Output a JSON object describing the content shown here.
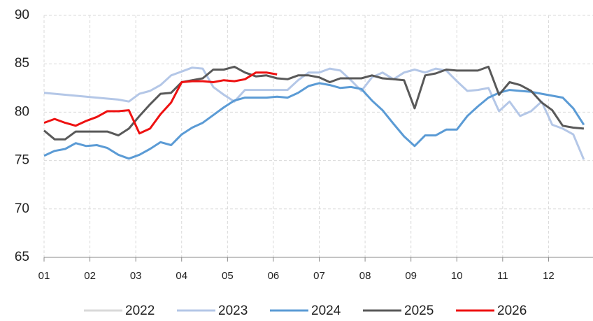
{
  "chart_data": {
    "type": "line",
    "x": [
      1,
      1.23,
      1.46,
      1.69,
      1.92,
      2.15,
      2.38,
      2.62,
      2.85,
      3.08,
      3.31,
      3.54,
      3.77,
      4.0,
      4.23,
      4.46,
      4.69,
      4.92,
      5.15,
      5.38,
      5.62,
      5.85,
      6.08,
      6.31,
      6.54,
      6.77,
      7.0,
      7.23,
      7.46,
      7.69,
      7.92,
      8.15,
      8.38,
      8.62,
      8.85,
      9.08,
      9.31,
      9.54,
      9.77,
      10.0,
      10.23,
      10.46,
      10.69,
      10.92,
      11.15,
      11.38,
      11.62,
      11.85,
      12.08,
      12.31,
      12.54,
      12.77
    ],
    "xlim": [
      1,
      13
    ],
    "xticks": [
      {
        "value": 1,
        "label": "01"
      },
      {
        "value": 2,
        "label": "02"
      },
      {
        "value": 3,
        "label": "03"
      },
      {
        "value": 4,
        "label": "04"
      },
      {
        "value": 5,
        "label": "05"
      },
      {
        "value": 6,
        "label": "06"
      },
      {
        "value": 7,
        "label": "07"
      },
      {
        "value": 8,
        "label": "08"
      },
      {
        "value": 9,
        "label": "09"
      },
      {
        "value": 10,
        "label": "10"
      },
      {
        "value": 11,
        "label": "11"
      },
      {
        "value": 12,
        "label": "12"
      }
    ],
    "ylim": [
      65,
      90
    ],
    "yticks": [
      65,
      70,
      75,
      80,
      85,
      90
    ],
    "grid": true,
    "legend": "bottom",
    "series": [
      {
        "name": "2022",
        "color": "#d9d9d9",
        "values": [
          null,
          null,
          null,
          null,
          null,
          null,
          null,
          null,
          null,
          null,
          null,
          null,
          null,
          null,
          null,
          null,
          null,
          null,
          null,
          null,
          null,
          null,
          null,
          null,
          null,
          null,
          null,
          null,
          null,
          null,
          null,
          null,
          null,
          null,
          null,
          null,
          null,
          null,
          null,
          null,
          null,
          null,
          null,
          null,
          null,
          null,
          null,
          null,
          null,
          null,
          null,
          null
        ]
      },
      {
        "name": "2023",
        "color": "#b4c7e7",
        "values": [
          82,
          81.9,
          81.8,
          81.7,
          81.6,
          81.5,
          81.4,
          81.3,
          81.1,
          81.9,
          82.2,
          82.8,
          83.8,
          84.2,
          84.6,
          84.5,
          82.6,
          81.8,
          81.1,
          82.3,
          82.3,
          82.3,
          82.3,
          82.3,
          83.3,
          84.1,
          84.1,
          84.5,
          84.3,
          83.3,
          82.2,
          83.6,
          84.1,
          83.4,
          84.1,
          84.4,
          84.1,
          84.5,
          84.3,
          83.2,
          82.2,
          82.3,
          82.5,
          80.1,
          81.1,
          79.6,
          80.1,
          81.1,
          78.7,
          78.3,
          77.7,
          75.1
        ]
      },
      {
        "name": "2024",
        "color": "#5b9bd5",
        "values": [
          75.5,
          76,
          76.2,
          76.8,
          76.5,
          76.6,
          76.3,
          75.6,
          75.2,
          75.6,
          76.2,
          76.9,
          76.6,
          77.7,
          78.4,
          78.9,
          79.7,
          80.5,
          81.2,
          81.5,
          81.5,
          81.5,
          81.6,
          81.5,
          82,
          82.7,
          83,
          82.8,
          82.5,
          82.6,
          82.4,
          81.2,
          80.2,
          78.8,
          77.5,
          76.5,
          77.6,
          77.6,
          78.2,
          78.2,
          79.6,
          80.6,
          81.5,
          82,
          82.3,
          82.2,
          82.1,
          81.9,
          81.7,
          81.5,
          80.4,
          78.7
        ]
      },
      {
        "name": "2025",
        "color": "#595959",
        "values": [
          78.1,
          77.2,
          77.2,
          78,
          78,
          78,
          78,
          77.6,
          78.3,
          79.6,
          80.8,
          81.9,
          82,
          83.1,
          83.3,
          83.5,
          84.4,
          84.4,
          84.7,
          84.1,
          83.7,
          83.8,
          83.5,
          83.4,
          83.8,
          83.8,
          83.6,
          83.1,
          83.5,
          83.5,
          83.5,
          83.8,
          83.5,
          83.4,
          83.3,
          80.4,
          83.8,
          84,
          84.4,
          84.3,
          84.3,
          84.3,
          84.7,
          81.8,
          83.1,
          82.8,
          82.2,
          81,
          80.2,
          78.6,
          78.4,
          78.3
        ]
      },
      {
        "name": "2026",
        "color": "#ee1111",
        "values": [
          78.9,
          79.3,
          78.9,
          78.6,
          79.1,
          79.5,
          80.1,
          80.1,
          80.2,
          77.8,
          78.3,
          79.8,
          81,
          83.1,
          83.2,
          83.2,
          83.1,
          83.3,
          83.2,
          83.4,
          84.1,
          84.1,
          83.9,
          null,
          null,
          null,
          null,
          null,
          null,
          null,
          null,
          null,
          null,
          null,
          null,
          null,
          null,
          null,
          null,
          null,
          null,
          null,
          null,
          null,
          null,
          null,
          null,
          null,
          null,
          null,
          null,
          null
        ]
      }
    ]
  }
}
